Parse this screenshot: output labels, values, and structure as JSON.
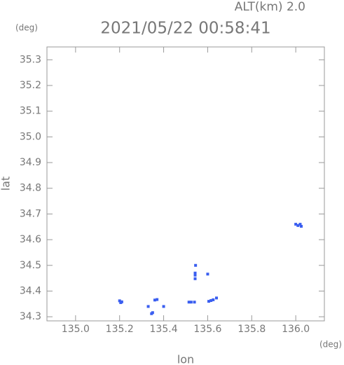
{
  "chart_data": {
    "type": "scatter",
    "title": "2021/05/22 00:58:41",
    "annotation": "ALT(km) 2.0",
    "y_unit": "(deg)",
    "x_unit": "(deg)",
    "x_label": "lon",
    "y_label": "lat",
    "color": "#3a5ef0",
    "x": [
      135.2,
      135.21,
      135.205,
      135.33,
      135.35,
      135.345,
      135.36,
      135.37,
      135.4,
      135.515,
      135.525,
      135.54,
      135.543,
      135.543,
      135.543,
      135.545,
      135.6,
      135.605,
      135.615,
      135.625,
      135.64,
      136.0,
      136.01,
      136.025,
      136.02
    ],
    "values": [
      34.362,
      34.358,
      34.355,
      34.34,
      34.316,
      34.312,
      34.365,
      34.367,
      34.34,
      34.357,
      34.357,
      34.357,
      34.448,
      34.462,
      34.47,
      34.5,
      34.466,
      34.36,
      34.363,
      34.366,
      34.373,
      34.66,
      34.655,
      34.652,
      34.66
    ],
    "xlim": [
      134.87,
      136.13
    ],
    "ylim": [
      34.284,
      35.35
    ],
    "xticks": [
      {
        "value": 135.0,
        "label": "135.0"
      },
      135.2,
      135.4,
      135.6,
      135.8,
      {
        "value": 136.0,
        "label": "136.0"
      }
    ],
    "yticks": [
      34.3,
      34.4,
      34.5,
      34.6,
      34.7,
      34.8,
      34.9,
      {
        "value": 35.0,
        "label": "35.0"
      },
      35.1,
      35.2,
      35.3
    ]
  }
}
